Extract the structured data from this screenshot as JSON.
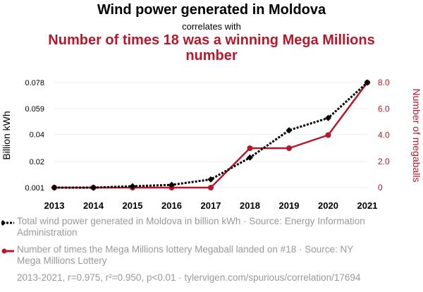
{
  "title": "Wind power generated in Moldova",
  "correlates": "correlates with",
  "subtitle": "Number of times 18 was a winning Mega Millions number",
  "legend": {
    "series1": "Total wind power generated in Moldova in billion kWh · Source: Energy Information Administration",
    "series2": "Number of times the Mega Millions lottery Megaball landed on #18 · Source: NY Mega Millions Lottery"
  },
  "footer": "2013-2021, r=0.975, r²=0.950, p<0.01 · tylervigen.com/spurious/correlation/17694",
  "colors": {
    "series1": "#000000",
    "series2": "#b5182b"
  },
  "chart_data": {
    "type": "line",
    "x": [
      2013,
      2014,
      2015,
      2016,
      2017,
      2018,
      2019,
      2020,
      2021
    ],
    "y_left_label": "Billion kWh",
    "y_right_label": "Number of megaballs",
    "y_left_ticks": [
      "0.001",
      "0.02",
      "0.04",
      "0.059",
      "0.078"
    ],
    "y_left_tick_values": [
      0.001,
      0.02,
      0.04,
      0.059,
      0.078
    ],
    "y_right_ticks": [
      "0",
      "2.0",
      "4.0",
      "6.0",
      "8.0"
    ],
    "y_right_tick_values": [
      0,
      2,
      4,
      6,
      8
    ],
    "y_left_range": [
      0.001,
      0.078
    ],
    "y_right_range": [
      0,
      8
    ],
    "series": [
      {
        "axis": "left",
        "marker": "diamond",
        "dash": true,
        "values": [
          0.001,
          0.001,
          0.002,
          0.003,
          0.007,
          0.023,
          0.043,
          0.052,
          0.078
        ]
      },
      {
        "axis": "right",
        "marker": "circle",
        "dash": false,
        "values": [
          0,
          0,
          0,
          0,
          0,
          3,
          3,
          4,
          8
        ]
      }
    ]
  }
}
